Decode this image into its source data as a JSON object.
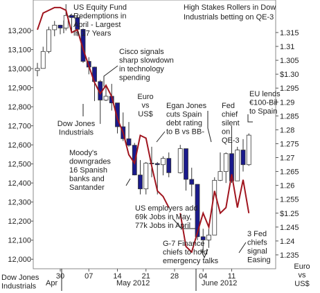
{
  "chart_data": {
    "type": "candlestick",
    "title": [
      "High Stakes Rollers in Dow",
      "Industrials betting on QE-3"
    ],
    "categories": [
      null,
      null,
      null,
      null,
      "30",
      null,
      null,
      null,
      null,
      "07",
      null,
      null,
      null,
      null,
      "14",
      null,
      null,
      null,
      null,
      "21",
      null,
      null,
      null,
      null,
      "28",
      null,
      null,
      null,
      null,
      "04",
      null,
      null,
      null,
      null,
      "11",
      null,
      null,
      null
    ],
    "month_labels": [
      "Apr",
      "May 2012",
      "June 2012"
    ],
    "ylim": [
      11950,
      13360
    ],
    "yticks": [
      {
        "value": 12000,
        "label": "12,000"
      },
      {
        "value": 12100,
        "label": "12,100"
      },
      {
        "value": 12200,
        "label": "12,200"
      },
      {
        "value": 12300,
        "label": "12,300"
      },
      {
        "value": 12400,
        "label": "12,400"
      },
      {
        "value": 12500,
        "label": "12,500"
      },
      {
        "value": 12600,
        "label": "12,600"
      },
      {
        "value": 12700,
        "label": "12,700"
      },
      {
        "value": 12800,
        "label": "12,800"
      },
      {
        "value": 12900,
        "label": "12,900"
      },
      {
        "value": 13000,
        "label": "13,000"
      },
      {
        "value": 13100,
        "label": "13,100"
      },
      {
        "value": 13200,
        "label": "13,200"
      }
    ],
    "y2lim": [
      1.23,
      1.3267
    ],
    "y2ticks": [
      1.235,
      1.24,
      1.245,
      {
        "value": 1.25,
        "label": "$1.25"
      },
      1.255,
      1.26,
      1.265,
      1.27,
      1.275,
      1.28,
      1.285,
      1.29,
      1.295,
      {
        "value": 1.3,
        "label": "$1.30"
      },
      1.305,
      1.31,
      1.315
    ],
    "series": [
      {
        "type": "candlestick",
        "label_lines": [
          "Dow Jones",
          "Industrials"
        ],
        "color": "#1a1a8c",
        "color_up": "#ffffff",
        "color_down": "#1a1a8c",
        "open": [
          12990,
          13001,
          13090,
          13204,
          13228,
          13213,
          13279,
          13268,
          13206,
          13038,
          13008,
          12932,
          12835,
          12855,
          12820,
          12695,
          12632,
          12598,
          12442,
          12369,
          12504,
          12502,
          12496,
          12529,
          null,
          12454,
          12580,
          12419,
          12393,
          12118,
          12101,
          12127,
          12414,
          12460,
          12554,
          12411,
          12573,
          12496
        ],
        "high": [
          13030,
          13115,
          13220,
          13250,
          13230,
          13338,
          13280,
          13280,
          13210,
          13060,
          13010,
          12940,
          12910,
          12920,
          12820,
          12770,
          12720,
          12610,
          12520,
          12510,
          12590,
          12510,
          12540,
          12560,
          null,
          12600,
          12580,
          12480,
          12393,
          12160,
          12160,
          12430,
          12560,
          12560,
          12700,
          12590,
          12630,
          12660
        ],
        "low": [
          12960,
          13001,
          13080,
          13170,
          13180,
          13200,
          13190,
          13170,
          13030,
          12970,
          12830,
          12710,
          12830,
          12780,
          12660,
          12620,
          12590,
          12440,
          12340,
          12340,
          12430,
          12340,
          12440,
          12430,
          null,
          12450,
          12360,
          12330,
          12100,
          12035,
          12060,
          12127,
          12410,
          12400,
          12400,
          12410,
          12460,
          12490
        ],
        "close": [
          13001,
          13090,
          13204,
          13228,
          13213,
          13279,
          13268,
          13206,
          13038,
          13008,
          12932,
          12835,
          12855,
          12820,
          12695,
          12632,
          12598,
          12442,
          12369,
          12504,
          12502,
          12496,
          12529,
          12454,
          null,
          12580,
          12419,
          12393,
          12118,
          12101,
          12127,
          12414,
          12460,
          12554,
          12411,
          12573,
          12496,
          12651
        ]
      },
      {
        "type": "line",
        "axis": "y2",
        "label_lines": [
          "Euro",
          "vs",
          "US$"
        ],
        "color": "#a0141e",
        "values": [
          1.316,
          1.322,
          1.323,
          1.324,
          1.324,
          1.323,
          1.315,
          1.316,
          1.309,
          1.303,
          1.297,
          1.293,
          1.296,
          1.292,
          1.284,
          1.279,
          1.271,
          1.268,
          1.278,
          1.277,
          1.267,
          1.258,
          1.256,
          1.252,
          null,
          1.25,
          1.238,
          1.236,
          1.243,
          1.25,
          1.245,
          1.258,
          1.25,
          1.252,
          1.264,
          1.252,
          1.262,
          1.25
        ]
      }
    ],
    "annotations": [
      [
        "US Equity Fund",
        "Redemptions in",
        "April - Largest",
        "in 17 Years"
      ],
      [
        "Cisco signals",
        "sharp slowdown",
        "in technology",
        "spending"
      ],
      [
        "Egan Jones",
        "cuts Spain",
        "debt rating",
        "to B vs BB-"
      ],
      [
        "Fed",
        "chief",
        "silent",
        "on",
        "QE-3"
      ],
      [
        "EU lends",
        "€100-Bil",
        "to Spain"
      ],
      [
        "Moody's",
        "downgrades",
        "16 Spanish",
        "banks and",
        "Santander"
      ],
      [
        "US employers add",
        "69k Jobs in May,",
        "77k Jobs in April"
      ],
      [
        "G-7 Finance",
        "chiefs to hold",
        "emergency talks"
      ],
      [
        "3 Fed",
        "chiefs",
        "signal",
        "Easing"
      ]
    ]
  }
}
